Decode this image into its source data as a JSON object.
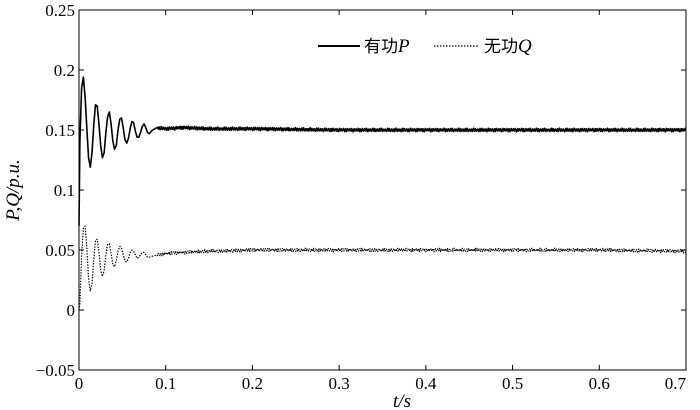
{
  "chart_data": {
    "type": "line",
    "title": "",
    "xlabel": "t/s",
    "ylabel": "P,Q/p.u.",
    "xlim": [
      0,
      0.7
    ],
    "ylim": [
      -0.05,
      0.25
    ],
    "xticks": [
      0,
      0.1,
      0.2,
      0.3,
      0.4,
      0.5,
      0.6,
      0.7
    ],
    "xtick_labels": [
      "0",
      "0.1",
      "0.2",
      "0.3",
      "0.4",
      "0.5",
      "0.6",
      "0.7"
    ],
    "yticks": [
      -0.05,
      0,
      0.05,
      0.1,
      0.15,
      0.2,
      0.25
    ],
    "ytick_labels": [
      "−0.05",
      "0",
      "0.05",
      "0.1",
      "0.15",
      "0.2",
      "0.25"
    ],
    "grid": false,
    "legend_position": "top-right",
    "series": [
      {
        "name": "有功P",
        "legend_text": "有功",
        "legend_var": "P",
        "style": "solid",
        "color": "#000000",
        "x": [
          0,
          0.001,
          0.003,
          0.005,
          0.007,
          0.009,
          0.011,
          0.013,
          0.015,
          0.017,
          0.019,
          0.021,
          0.023,
          0.025,
          0.027,
          0.029,
          0.031,
          0.033,
          0.035,
          0.037,
          0.039,
          0.041,
          0.043,
          0.045,
          0.047,
          0.049,
          0.051,
          0.053,
          0.055,
          0.057,
          0.059,
          0.061,
          0.063,
          0.065,
          0.067,
          0.069,
          0.071,
          0.073,
          0.075,
          0.077,
          0.079,
          0.081,
          0.085,
          0.09,
          0.1,
          0.12,
          0.15,
          0.2,
          0.3,
          0.4,
          0.5,
          0.6,
          0.7
        ],
        "y": [
          0.07,
          0.14,
          0.185,
          0.194,
          0.178,
          0.152,
          0.127,
          0.119,
          0.131,
          0.154,
          0.171,
          0.17,
          0.155,
          0.137,
          0.127,
          0.131,
          0.148,
          0.161,
          0.165,
          0.155,
          0.141,
          0.134,
          0.137,
          0.15,
          0.159,
          0.16,
          0.152,
          0.142,
          0.139,
          0.143,
          0.151,
          0.157,
          0.156,
          0.149,
          0.144,
          0.144,
          0.148,
          0.153,
          0.155,
          0.152,
          0.148,
          0.147,
          0.15,
          0.152,
          0.151,
          0.152,
          0.151,
          0.151,
          0.15,
          0.15,
          0.15,
          0.15,
          0.15
        ]
      },
      {
        "name": "无功Q",
        "legend_text": "无功",
        "legend_var": "Q",
        "style": "dotted",
        "color": "#000000",
        "x": [
          0,
          0.001,
          0.003,
          0.005,
          0.007,
          0.009,
          0.011,
          0.013,
          0.015,
          0.017,
          0.019,
          0.021,
          0.023,
          0.025,
          0.027,
          0.029,
          0.031,
          0.033,
          0.035,
          0.037,
          0.039,
          0.041,
          0.043,
          0.045,
          0.047,
          0.049,
          0.051,
          0.053,
          0.055,
          0.057,
          0.059,
          0.061,
          0.063,
          0.065,
          0.067,
          0.069,
          0.071,
          0.073,
          0.075,
          0.077,
          0.079,
          0.081,
          0.085,
          0.09,
          0.1,
          0.12,
          0.15,
          0.2,
          0.3,
          0.4,
          0.5,
          0.6,
          0.7
        ],
        "y": [
          0.0,
          0.005,
          0.045,
          0.068,
          0.07,
          0.052,
          0.026,
          0.016,
          0.022,
          0.042,
          0.058,
          0.059,
          0.048,
          0.033,
          0.028,
          0.033,
          0.046,
          0.055,
          0.055,
          0.047,
          0.038,
          0.036,
          0.041,
          0.049,
          0.053,
          0.052,
          0.046,
          0.041,
          0.04,
          0.043,
          0.048,
          0.05,
          0.049,
          0.046,
          0.043,
          0.044,
          0.046,
          0.048,
          0.048,
          0.046,
          0.044,
          0.044,
          0.045,
          0.046,
          0.047,
          0.048,
          0.049,
          0.05,
          0.05,
          0.05,
          0.05,
          0.05,
          0.049
        ]
      }
    ]
  }
}
